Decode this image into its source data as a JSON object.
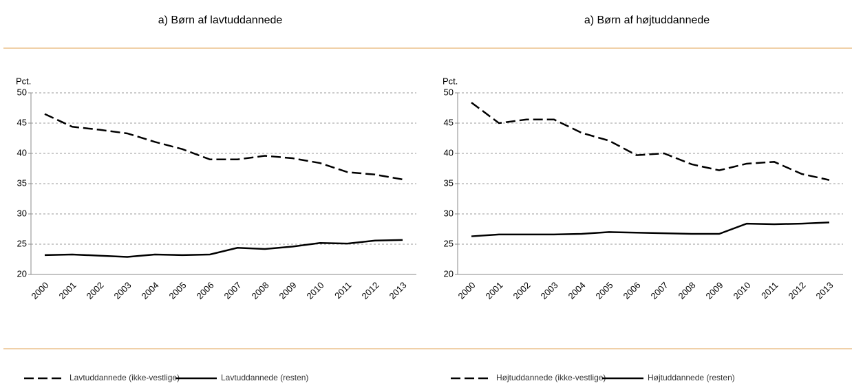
{
  "chart_data": [
    {
      "type": "line",
      "title": "a) Børn af lavtuddannede",
      "y_label": "Pct.",
      "categories": [
        "2000",
        "2001",
        "2002",
        "2003",
        "2004",
        "2005",
        "2006",
        "2007",
        "2008",
        "2009",
        "2010",
        "2011",
        "2012",
        "2013"
      ],
      "series": [
        {
          "name": "Lavtuddannede (ikke-vestlige)",
          "color": "#000000",
          "style": "dashed",
          "values": [
            46.5,
            44.4,
            43.9,
            43.3,
            41.9,
            40.7,
            39.0,
            39.0,
            39.6,
            39.2,
            38.4,
            36.9,
            36.5,
            35.7
          ]
        },
        {
          "name": "Lavtuddannede (resten)",
          "color": "#000000",
          "style": "solid",
          "values": [
            23.2,
            23.3,
            23.1,
            22.9,
            23.3,
            23.2,
            23.3,
            24.4,
            24.2,
            24.6,
            25.2,
            25.1,
            25.6,
            25.7
          ]
        }
      ],
      "ylim": [
        20,
        50
      ],
      "yticks": [
        20,
        25,
        30,
        35,
        40,
        45,
        50
      ],
      "grid": true
    },
    {
      "type": "line",
      "title": "a) Børn af højtuddannede",
      "y_label": "Pct.",
      "categories": [
        "2000",
        "2001",
        "2002",
        "2003",
        "2004",
        "2005",
        "2006",
        "2007",
        "2008",
        "2009",
        "2010",
        "2011",
        "2012",
        "2013"
      ],
      "series": [
        {
          "name": "Højtuddannede (ikke-vestlige)",
          "color": "#000000",
          "style": "dashed",
          "values": [
            48.4,
            45.0,
            45.6,
            45.6,
            43.4,
            42.1,
            39.7,
            40.0,
            38.2,
            37.2,
            38.3,
            38.6,
            36.6,
            35.6
          ]
        },
        {
          "name": "Højtuddannede (resten)",
          "color": "#000000",
          "style": "solid",
          "values": [
            26.3,
            26.6,
            26.6,
            26.6,
            26.7,
            27.0,
            26.9,
            26.8,
            26.7,
            26.7,
            28.4,
            28.3,
            28.4,
            28.6
          ]
        }
      ],
      "ylim": [
        20,
        50
      ],
      "yticks": [
        20,
        25,
        30,
        35,
        40,
        45,
        50
      ],
      "grid": true
    }
  ]
}
